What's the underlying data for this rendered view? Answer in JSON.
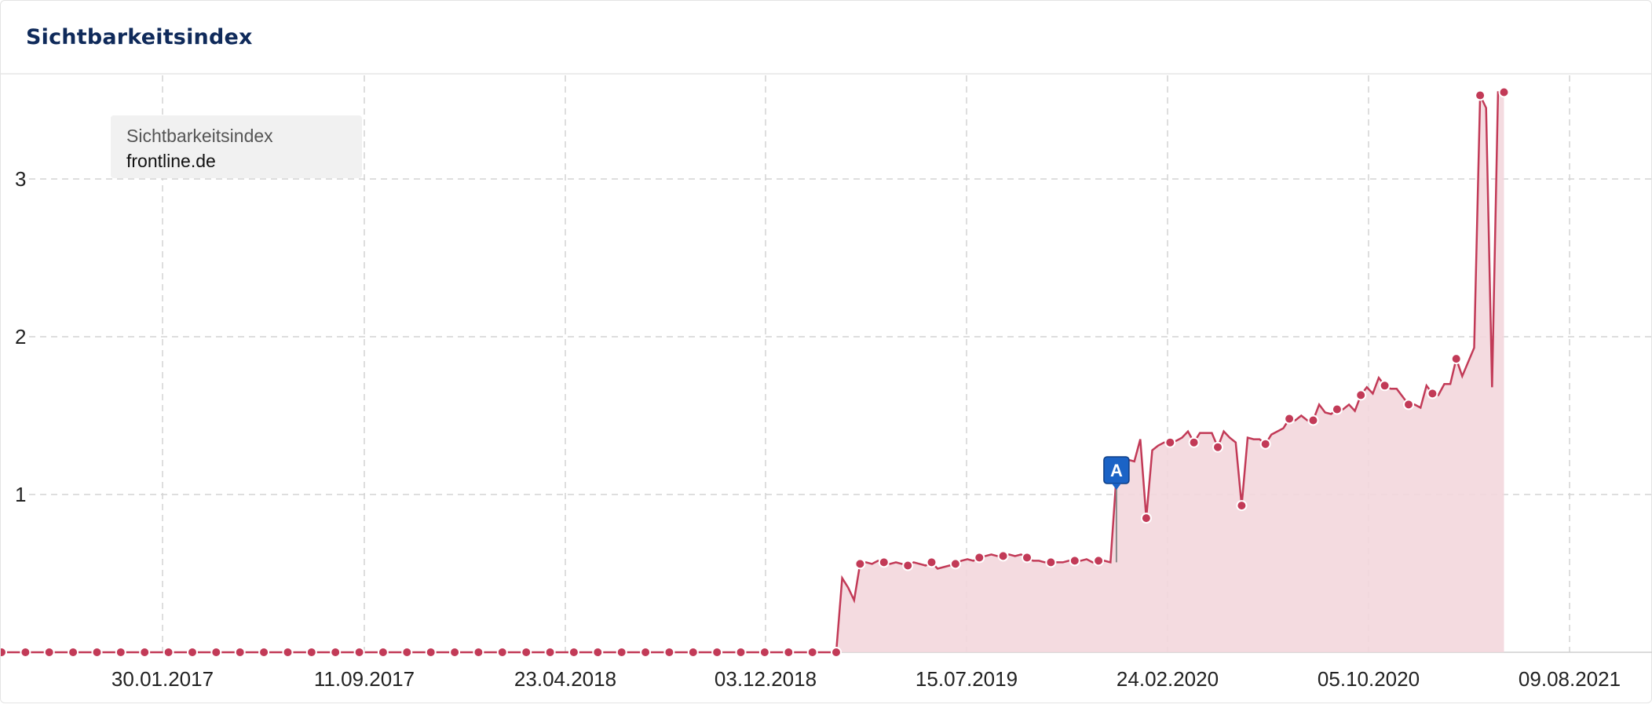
{
  "header": {
    "title": "Sichtbarkeitsindex"
  },
  "legend": {
    "title": "Sichtbarkeitsindex",
    "domain": "frontline.de"
  },
  "colors": {
    "line": "#c23a57",
    "fill": "#f3d7dd",
    "grid": "#d4d4d4",
    "marker_bg": "#1b63c6"
  },
  "chart_data": {
    "type": "area",
    "title": "Sichtbarkeitsindex",
    "xlabel": "",
    "ylabel": "",
    "x_range": [
      "2016-05-02",
      "2021-08-16"
    ],
    "ylim": [
      0,
      3.55
    ],
    "y_ticks": [
      1,
      2,
      3
    ],
    "x_ticks": [
      "30.01.2017",
      "11.09.2017",
      "23.04.2018",
      "03.12.2018",
      "15.07.2019",
      "24.02.2020",
      "05.10.2020",
      "09.08.2021"
    ],
    "grid": true,
    "legend_position": "top-left",
    "series": [
      {
        "name": "frontline.de",
        "points": [
          [
            "2016-05-02",
            0
          ],
          [
            "2016-05-30",
            0
          ],
          [
            "2016-06-27",
            0
          ],
          [
            "2016-07-25",
            0
          ],
          [
            "2016-08-22",
            0
          ],
          [
            "2016-09-19",
            0
          ],
          [
            "2016-10-17",
            0
          ],
          [
            "2016-11-14",
            0
          ],
          [
            "2016-12-12",
            0
          ],
          [
            "2017-01-09",
            0
          ],
          [
            "2017-02-06",
            0
          ],
          [
            "2017-03-06",
            0
          ],
          [
            "2017-04-03",
            0
          ],
          [
            "2017-05-01",
            0
          ],
          [
            "2017-05-29",
            0
          ],
          [
            "2017-06-26",
            0
          ],
          [
            "2017-07-24",
            0
          ],
          [
            "2017-08-21",
            0
          ],
          [
            "2017-09-18",
            0
          ],
          [
            "2017-10-16",
            0
          ],
          [
            "2017-11-13",
            0
          ],
          [
            "2017-12-11",
            0
          ],
          [
            "2018-01-08",
            0
          ],
          [
            "2018-02-05",
            0
          ],
          [
            "2018-03-05",
            0
          ],
          [
            "2018-04-02",
            0
          ],
          [
            "2018-04-30",
            0
          ],
          [
            "2018-05-28",
            0
          ],
          [
            "2018-06-25",
            0
          ],
          [
            "2018-07-23",
            0
          ],
          [
            "2018-08-20",
            0
          ],
          [
            "2018-09-17",
            0
          ],
          [
            "2018-10-15",
            0
          ],
          [
            "2018-11-12",
            0
          ],
          [
            "2018-12-10",
            0
          ],
          [
            "2019-01-07",
            0
          ],
          [
            "2019-02-04",
            0
          ],
          [
            "2019-03-04",
            0
          ],
          [
            "2019-04-01",
            0
          ],
          [
            "2019-04-08",
            0.47
          ],
          [
            "2019-04-15",
            0.41
          ],
          [
            "2019-04-22",
            0.33
          ],
          [
            "2019-04-29",
            0.56
          ],
          [
            "2019-05-06",
            0.57
          ],
          [
            "2019-05-13",
            0.56
          ],
          [
            "2019-05-20",
            0.58
          ],
          [
            "2019-05-27",
            0.57
          ],
          [
            "2019-06-03",
            0.56
          ],
          [
            "2019-06-10",
            0.57
          ],
          [
            "2019-06-17",
            0.56
          ],
          [
            "2019-06-24",
            0.55
          ],
          [
            "2019-07-01",
            0.57
          ],
          [
            "2019-07-08",
            0.56
          ],
          [
            "2019-07-15",
            0.55
          ],
          [
            "2019-07-22",
            0.57
          ],
          [
            "2019-07-29",
            0.53
          ],
          [
            "2019-08-05",
            0.54
          ],
          [
            "2019-08-12",
            0.55
          ],
          [
            "2019-08-19",
            0.56
          ],
          [
            "2019-08-26",
            0.58
          ],
          [
            "2019-09-02",
            0.59
          ],
          [
            "2019-09-09",
            0.58
          ],
          [
            "2019-09-16",
            0.6
          ],
          [
            "2019-09-23",
            0.61
          ],
          [
            "2019-09-30",
            0.62
          ],
          [
            "2019-10-07",
            0.61
          ],
          [
            "2019-10-14",
            0.61
          ],
          [
            "2019-10-21",
            0.62
          ],
          [
            "2019-10-28",
            0.61
          ],
          [
            "2019-11-04",
            0.62
          ],
          [
            "2019-11-11",
            0.6
          ],
          [
            "2019-11-18",
            0.58
          ],
          [
            "2019-11-25",
            0.58
          ],
          [
            "2019-12-02",
            0.57
          ],
          [
            "2019-12-09",
            0.57
          ],
          [
            "2019-12-16",
            0.57
          ],
          [
            "2019-12-23",
            0.57
          ],
          [
            "2019-12-30",
            0.58
          ],
          [
            "2020-01-06",
            0.58
          ],
          [
            "2020-01-13",
            0.58
          ],
          [
            "2020-01-20",
            0.59
          ],
          [
            "2020-01-27",
            0.57
          ],
          [
            "2020-02-03",
            0.58
          ],
          [
            "2020-02-10",
            0.58
          ],
          [
            "2020-02-17",
            0.57
          ],
          [
            "2020-02-24",
            1.12
          ],
          [
            "2020-03-02",
            1.18
          ],
          [
            "2020-03-09",
            1.22
          ],
          [
            "2020-03-16",
            1.21
          ],
          [
            "2020-03-23",
            1.35
          ],
          [
            "2020-03-30",
            0.85
          ],
          [
            "2020-04-06",
            1.28
          ],
          [
            "2020-04-13",
            1.31
          ],
          [
            "2020-04-20",
            1.33
          ],
          [
            "2020-04-27",
            1.33
          ],
          [
            "2020-05-04",
            1.34
          ],
          [
            "2020-05-11",
            1.36
          ],
          [
            "2020-05-18",
            1.4
          ],
          [
            "2020-05-25",
            1.33
          ],
          [
            "2020-06-01",
            1.39
          ],
          [
            "2020-06-08",
            1.39
          ],
          [
            "2020-06-15",
            1.39
          ],
          [
            "2020-06-22",
            1.3
          ],
          [
            "2020-06-29",
            1.4
          ],
          [
            "2020-07-06",
            1.36
          ],
          [
            "2020-07-13",
            1.33
          ],
          [
            "2020-07-20",
            0.93
          ],
          [
            "2020-07-27",
            1.36
          ],
          [
            "2020-08-03",
            1.35
          ],
          [
            "2020-08-10",
            1.35
          ],
          [
            "2020-08-17",
            1.32
          ],
          [
            "2020-08-24",
            1.38
          ],
          [
            "2020-08-31",
            1.4
          ],
          [
            "2020-09-07",
            1.42
          ],
          [
            "2020-09-14",
            1.48
          ],
          [
            "2020-09-21",
            1.47
          ],
          [
            "2020-09-28",
            1.5
          ],
          [
            "2020-10-05",
            1.47
          ],
          [
            "2020-10-12",
            1.47
          ],
          [
            "2020-10-19",
            1.57
          ],
          [
            "2020-10-26",
            1.52
          ],
          [
            "2020-11-02",
            1.51
          ],
          [
            "2020-11-09",
            1.54
          ],
          [
            "2020-11-16",
            1.54
          ],
          [
            "2020-11-23",
            1.57
          ],
          [
            "2020-11-30",
            1.53
          ],
          [
            "2020-12-07",
            1.63
          ],
          [
            "2020-12-14",
            1.68
          ],
          [
            "2020-12-21",
            1.64
          ],
          [
            "2020-12-28",
            1.74
          ],
          [
            "2021-01-04",
            1.69
          ],
          [
            "2021-01-11",
            1.67
          ],
          [
            "2021-01-18",
            1.67
          ],
          [
            "2021-01-25",
            1.62
          ],
          [
            "2021-02-01",
            1.57
          ],
          [
            "2021-02-08",
            1.57
          ],
          [
            "2021-02-15",
            1.55
          ],
          [
            "2021-02-22",
            1.69
          ],
          [
            "2021-03-01",
            1.64
          ],
          [
            "2021-03-08",
            1.63
          ],
          [
            "2021-03-15",
            1.7
          ],
          [
            "2021-03-22",
            1.7
          ],
          [
            "2021-03-29",
            1.86
          ],
          [
            "2021-04-05",
            1.75
          ],
          [
            "2021-04-12",
            1.84
          ],
          [
            "2021-04-19",
            1.93
          ],
          [
            "2021-04-26",
            3.53
          ],
          [
            "2021-05-03",
            3.45
          ],
          [
            "2021-05-10",
            1.68
          ],
          [
            "2021-05-17",
            3.55
          ],
          [
            "2021-05-24",
            3.55
          ]
        ]
      }
    ],
    "annotations": [
      {
        "label": "A",
        "date": "2020-02-24"
      }
    ]
  }
}
